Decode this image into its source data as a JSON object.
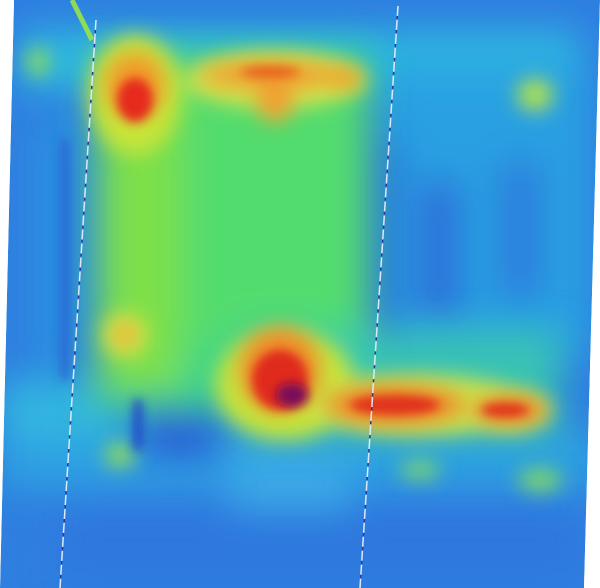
{
  "image": {
    "type": "heatmap",
    "colormap": [
      "#2a62d8",
      "#2ba4e4",
      "#2fd0d8",
      "#2ee08e",
      "#9ae43a",
      "#e6e64a",
      "#f29a2a",
      "#e62a1a",
      "#7a0a5a"
    ],
    "background_white": "#ffffff"
  }
}
